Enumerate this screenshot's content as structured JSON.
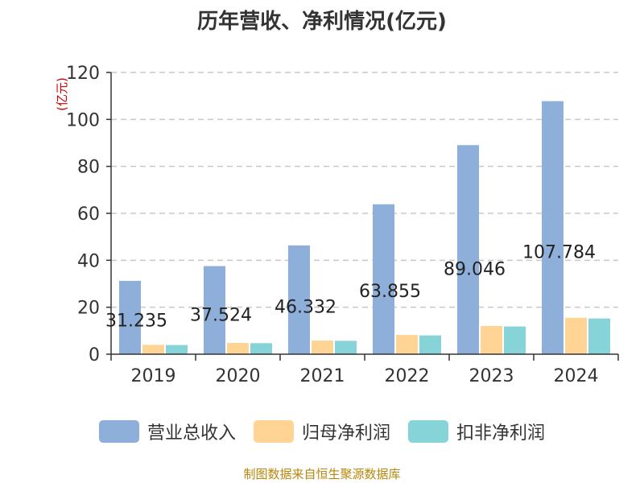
{
  "colors": {
    "revenue": "#8fafdb",
    "net_profit": "#ffd494",
    "deducted_profit": "#87d4d8",
    "axis": "#333333",
    "grid": "#c8c8c8",
    "ylabel": "#cc0000"
  },
  "source": "制图数据来自恒生聚源数据库",
  "chart_data": {
    "type": "bar",
    "title": "历年营收、净利情况(亿元)",
    "ylabel": "(亿元)",
    "xlabel": "",
    "ylim": [
      0,
      120
    ],
    "yticks": [
      0,
      20,
      40,
      60,
      80,
      100,
      120
    ],
    "grid": true,
    "legend_position": "bottom",
    "categories": [
      "2019",
      "2020",
      "2021",
      "2022",
      "2023",
      "2024"
    ],
    "series": [
      {
        "name": "营业总收入",
        "values": [
          31.235,
          37.524,
          46.332,
          63.855,
          89.046,
          107.784
        ],
        "labels": [
          "31.235",
          "37.524",
          "46.332",
          "63.855",
          "89.046",
          "107.784"
        ]
      },
      {
        "name": "归母净利润",
        "values": [
          4.0,
          4.8,
          5.8,
          8.2,
          12.0,
          15.5
        ]
      },
      {
        "name": "扣非净利润",
        "values": [
          3.9,
          4.7,
          5.7,
          8.0,
          11.8,
          15.2
        ]
      }
    ]
  }
}
